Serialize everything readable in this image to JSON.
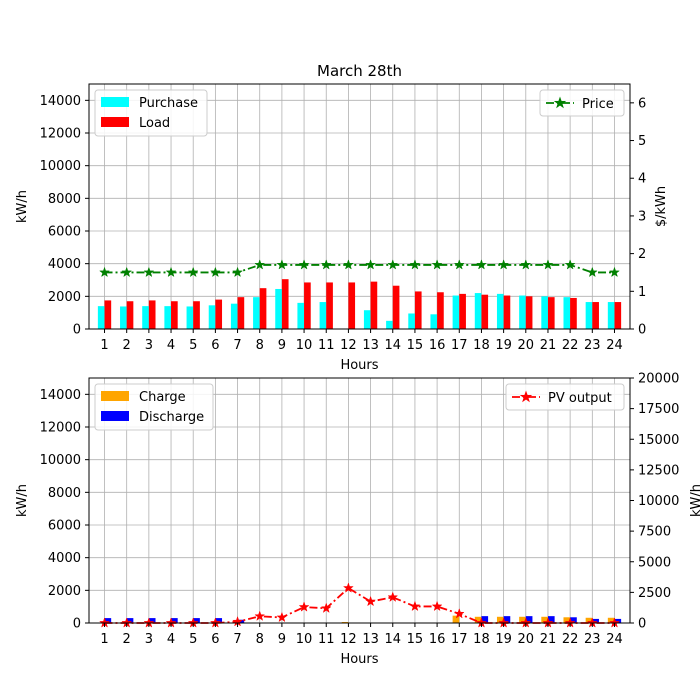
{
  "chart_data": [
    {
      "type": "bar",
      "title": "March 28th",
      "xlabel": "Hours",
      "ylabel": "kW/h",
      "y2label": "$/kWh",
      "categories": [
        "1",
        "2",
        "3",
        "4",
        "5",
        "6",
        "7",
        "8",
        "9",
        "10",
        "11",
        "12",
        "13",
        "14",
        "15",
        "16",
        "17",
        "18",
        "19",
        "20",
        "21",
        "22",
        "23",
        "24"
      ],
      "ylim": [
        0,
        15000
      ],
      "y2lim": [
        0,
        6.5
      ],
      "yticks": [
        0,
        2000,
        4000,
        6000,
        8000,
        10000,
        12000,
        14000
      ],
      "y2ticks": [
        0,
        1,
        2,
        3,
        4,
        5,
        6
      ],
      "grid": true,
      "series": [
        {
          "name": "Purchase",
          "axis": "left",
          "kind": "bar",
          "color": "#00ffff",
          "values": [
            1400,
            1380,
            1400,
            1400,
            1380,
            1450,
            1550,
            1950,
            2450,
            1600,
            1650,
            0,
            1150,
            500,
            950,
            900,
            2050,
            2200,
            2150,
            2050,
            2000,
            1950,
            1650,
            1650
          ]
        },
        {
          "name": "Load",
          "axis": "left",
          "kind": "bar",
          "color": "#ff0000",
          "values": [
            1750,
            1700,
            1750,
            1700,
            1700,
            1800,
            1950,
            2500,
            3050,
            2850,
            2850,
            2850,
            2900,
            2650,
            2300,
            2250,
            2150,
            2100,
            2050,
            2000,
            1950,
            1900,
            1650,
            1650
          ]
        },
        {
          "name": "Price",
          "axis": "right",
          "kind": "line",
          "color": "#008000",
          "marker": "star",
          "linestyle": "dashdot",
          "values": [
            1.5,
            1.5,
            1.5,
            1.5,
            1.5,
            1.5,
            1.5,
            1.7,
            1.7,
            1.7,
            1.7,
            1.7,
            1.7,
            1.7,
            1.7,
            1.7,
            1.7,
            1.7,
            1.7,
            1.7,
            1.7,
            1.7,
            1.5,
            1.5
          ]
        }
      ],
      "legend_left": "upper-left",
      "legend_right": "upper-right"
    },
    {
      "type": "bar",
      "title": "",
      "xlabel": "Hours",
      "ylabel": "kW/h",
      "y2label": "kW/h",
      "categories": [
        "1",
        "2",
        "3",
        "4",
        "5",
        "6",
        "7",
        "8",
        "9",
        "10",
        "11",
        "12",
        "13",
        "14",
        "15",
        "16",
        "17",
        "18",
        "19",
        "20",
        "21",
        "22",
        "23",
        "24"
      ],
      "ylim": [
        0,
        15000
      ],
      "y2lim": [
        0,
        20000
      ],
      "yticks": [
        0,
        2000,
        4000,
        6000,
        8000,
        10000,
        12000,
        14000
      ],
      "y2ticks": [
        0,
        2500,
        5000,
        7500,
        10000,
        12500,
        15000,
        17500,
        20000
      ],
      "grid": true,
      "series": [
        {
          "name": "Charge",
          "axis": "left",
          "kind": "bar",
          "color": "#ffa500",
          "values": [
            0,
            0,
            0,
            0,
            0,
            0,
            0,
            0,
            0,
            0,
            0,
            60,
            0,
            0,
            0,
            0,
            450,
            380,
            380,
            380,
            380,
            350,
            320,
            320
          ]
        },
        {
          "name": "Discharge",
          "axis": "left",
          "kind": "bar",
          "color": "#0000ff",
          "values": [
            300,
            300,
            300,
            300,
            300,
            300,
            200,
            0,
            0,
            0,
            0,
            0,
            0,
            0,
            0,
            0,
            0,
            420,
            420,
            420,
            420,
            350,
            250,
            250
          ]
        },
        {
          "name": "PV output",
          "axis": "right",
          "kind": "line",
          "color": "#ff0000",
          "marker": "star",
          "linestyle": "dashdot",
          "values": [
            0,
            0,
            0,
            0,
            0,
            0,
            100,
            550,
            450,
            1300,
            1200,
            2850,
            1750,
            2100,
            1350,
            1350,
            750,
            0,
            0,
            0,
            0,
            0,
            0,
            0
          ]
        }
      ],
      "legend_left": "upper-left",
      "legend_right": "upper-right"
    }
  ]
}
